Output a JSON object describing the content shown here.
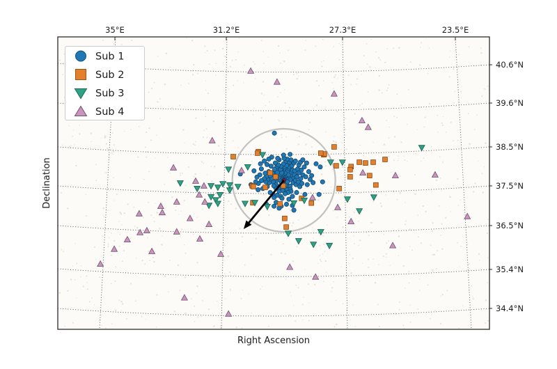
{
  "axes": {
    "x_label": "Right Ascension",
    "y_label": "Declination",
    "x_tick_labels": [
      "35°E",
      "31.2°E",
      "27.3°E",
      "23.5°E"
    ],
    "y_tick_labels": [
      "40.6°N",
      "39.6°N",
      "38.5°N",
      "37.5°N",
      "36.5°N",
      "35.4°N",
      "34.4°N"
    ]
  },
  "legend": {
    "position": "upper left",
    "items": [
      {
        "label": "Sub 1",
        "marker": "circle",
        "color": "#1f77b4",
        "edge": "#14527f"
      },
      {
        "label": "Sub 2",
        "marker": "square",
        "color": "#e2802e",
        "edge": "#9c5312"
      },
      {
        "label": "Sub 3",
        "marker": "triangle-down",
        "color": "#2fa184",
        "edge": "#1b6b57"
      },
      {
        "label": "Sub 4",
        "marker": "triangle-up",
        "color": "#cb93bf",
        "edge": "#6d5568"
      }
    ]
  },
  "chart_data": {
    "type": "scatter",
    "title": "",
    "xlabel": "Right Ascension",
    "ylabel": "Declination",
    "grid": "dotted",
    "legend_position": "upper left",
    "x_axis": {
      "unit": "deg E",
      "ticks": [
        35,
        31.2,
        27.3,
        23.5
      ],
      "direction": "reversed (RA decreases to the right)"
    },
    "y_axis": {
      "unit": "deg N",
      "ticks": [
        40.6,
        39.6,
        38.5,
        37.5,
        36.5,
        35.4,
        34.4
      ]
    },
    "series": [
      {
        "name": "Sub 1",
        "marker": "circle",
        "color": "#1f77b4",
        "edge": "#14456b",
        "points": [
          [
            29.28,
            37.71
          ],
          [
            29.31,
            37.74
          ],
          [
            29.25,
            37.68
          ],
          [
            29.33,
            37.69
          ],
          [
            29.22,
            37.73
          ],
          [
            29.29,
            37.77
          ],
          [
            29.35,
            37.73
          ],
          [
            29.24,
            37.64
          ],
          [
            29.3,
            37.66
          ],
          [
            29.19,
            37.69
          ],
          [
            29.37,
            37.76
          ],
          [
            29.26,
            37.78
          ],
          [
            29.32,
            37.62
          ],
          [
            29.21,
            37.76
          ],
          [
            29.38,
            37.67
          ],
          [
            29.16,
            37.73
          ],
          [
            29.27,
            37.58
          ],
          [
            29.34,
            37.8
          ],
          [
            29.23,
            37.61
          ],
          [
            29.4,
            37.72
          ],
          [
            29.14,
            37.66
          ],
          [
            29.31,
            37.56
          ],
          [
            29.18,
            37.79
          ],
          [
            29.36,
            37.59
          ],
          [
            29.28,
            37.83
          ],
          [
            29.12,
            37.71
          ],
          [
            29.42,
            37.77
          ],
          [
            29.25,
            37.85
          ],
          [
            29.2,
            37.57
          ],
          [
            29.39,
            37.63
          ],
          [
            29.1,
            37.76
          ],
          [
            29.33,
            37.87
          ],
          [
            29.44,
            37.68
          ],
          [
            29.17,
            37.62
          ],
          [
            29.28,
            37.54
          ],
          [
            29.41,
            37.81
          ],
          [
            29.13,
            37.8
          ],
          [
            29.36,
            37.85
          ],
          [
            29.22,
            37.52
          ],
          [
            29.46,
            37.73
          ],
          [
            29.05,
            37.68
          ],
          [
            29.52,
            37.75
          ],
          [
            29.27,
            37.95
          ],
          [
            29.3,
            37.47
          ],
          [
            29.0,
            37.78
          ],
          [
            29.56,
            37.64
          ],
          [
            29.15,
            37.92
          ],
          [
            29.43,
            37.5
          ],
          [
            28.98,
            37.6
          ],
          [
            29.58,
            37.82
          ],
          [
            29.08,
            37.51
          ],
          [
            29.5,
            37.92
          ],
          [
            29.35,
            37.97
          ],
          [
            29.24,
            37.44
          ],
          [
            28.95,
            37.72
          ],
          [
            29.6,
            37.7
          ],
          [
            29.12,
            37.96
          ],
          [
            29.47,
            37.45
          ],
          [
            29.03,
            37.87
          ],
          [
            29.55,
            37.55
          ],
          [
            29.18,
            37.42
          ],
          [
            29.4,
            37.94
          ],
          [
            28.93,
            37.8
          ],
          [
            29.62,
            37.76
          ],
          [
            29.07,
            37.43
          ],
          [
            29.51,
            37.86
          ],
          [
            29.25,
            38.0
          ],
          [
            29.33,
            37.4
          ],
          [
            28.9,
            37.66
          ],
          [
            29.65,
            37.62
          ],
          [
            29.1,
            38.0
          ],
          [
            29.45,
            37.38
          ],
          [
            29.0,
            37.92
          ],
          [
            29.57,
            37.47
          ],
          [
            29.2,
            38.04
          ],
          [
            29.38,
            38.02
          ],
          [
            28.88,
            37.55
          ],
          [
            29.67,
            37.84
          ],
          [
            29.05,
            37.38
          ],
          [
            29.53,
            38.0
          ],
          [
            29.15,
            37.35
          ],
          [
            29.48,
            38.05
          ],
          [
            28.92,
            37.9
          ],
          [
            29.63,
            37.52
          ],
          [
            29.3,
            38.08
          ],
          [
            29.25,
            37.32
          ],
          [
            28.85,
            37.75
          ],
          [
            29.7,
            37.71
          ],
          [
            29.02,
            38.03
          ],
          [
            29.6,
            37.94
          ],
          [
            28.8,
            37.62
          ],
          [
            29.75,
            37.78
          ],
          [
            29.1,
            38.12
          ],
          [
            29.4,
            37.25
          ],
          [
            28.78,
            37.85
          ],
          [
            29.78,
            37.6
          ],
          [
            29.22,
            38.15
          ],
          [
            29.52,
            37.28
          ],
          [
            28.75,
            37.5
          ],
          [
            29.8,
            37.88
          ],
          [
            28.95,
            38.1
          ],
          [
            29.66,
            37.3
          ],
          [
            28.82,
            37.95
          ],
          [
            29.83,
            37.68
          ],
          [
            29.05,
            38.18
          ],
          [
            29.35,
            37.2
          ],
          [
            28.72,
            37.7
          ],
          [
            29.85,
            37.5
          ],
          [
            29.18,
            38.2
          ],
          [
            29.58,
            38.1
          ],
          [
            28.86,
            37.35
          ],
          [
            29.72,
            38.02
          ],
          [
            28.7,
            37.92
          ],
          [
            29.88,
            37.76
          ],
          [
            29.0,
            37.25
          ],
          [
            29.45,
            38.18
          ],
          [
            28.78,
            38.05
          ],
          [
            29.9,
            37.62
          ],
          [
            29.28,
            38.22
          ],
          [
            29.62,
            37.22
          ],
          [
            28.68,
            37.58
          ],
          [
            29.92,
            37.84
          ],
          [
            28.9,
            38.15
          ],
          [
            29.75,
            37.35
          ],
          [
            28.65,
            37.8
          ],
          [
            29.95,
            37.7
          ],
          [
            29.12,
            37.18
          ],
          [
            29.5,
            38.22
          ],
          [
            28.73,
            38.12
          ],
          [
            29.86,
            38.06
          ],
          [
            28.55,
            37.75
          ],
          [
            30.05,
            37.65
          ],
          [
            29.3,
            38.3
          ],
          [
            29.55,
            37.1
          ],
          [
            28.5,
            37.55
          ],
          [
            30.1,
            37.8
          ],
          [
            28.6,
            38.0
          ],
          [
            30.0,
            37.45
          ],
          [
            29.08,
            38.32
          ],
          [
            29.7,
            38.25
          ],
          [
            28.45,
            37.88
          ],
          [
            30.15,
            37.58
          ],
          [
            28.58,
            37.3
          ],
          [
            30.05,
            37.95
          ],
          [
            29.2,
            37.05
          ],
          [
            29.8,
            38.2
          ],
          [
            28.4,
            37.68
          ],
          [
            30.2,
            37.74
          ],
          [
            28.65,
            38.18
          ],
          [
            29.95,
            38.15
          ],
          [
            29.0,
            37.02
          ],
          [
            29.62,
            37.0
          ],
          [
            28.35,
            37.78
          ],
          [
            30.24,
            37.62
          ],
          [
            28.52,
            38.1
          ],
          [
            30.08,
            38.08
          ],
          [
            29.38,
            37.0
          ],
          [
            29.88,
            37.05
          ],
          [
            28.3,
            37.6
          ],
          [
            30.16,
            37.42
          ],
          [
            29.61,
            38.86
          ],
          [
            28.06,
            38.0
          ],
          [
            27.98,
            37.62
          ],
          [
            28.1,
            37.3
          ],
          [
            28.2,
            38.08
          ],
          [
            30.4,
            37.55
          ],
          [
            30.76,
            37.82
          ],
          [
            29.45,
            36.95
          ],
          [
            28.95,
            36.9
          ],
          [
            30.3,
            37.9
          ]
        ]
      },
      {
        "name": "Sub 2",
        "marker": "square",
        "color": "#e2802e",
        "edge": "#8a4a15",
        "points": [
          [
            31.0,
            38.26
          ],
          [
            30.15,
            38.39
          ],
          [
            27.94,
            38.31
          ],
          [
            27.59,
            38.51
          ],
          [
            27.92,
            38.33
          ],
          [
            27.52,
            38.03
          ],
          [
            27.02,
            38.01
          ],
          [
            26.74,
            38.12
          ],
          [
            26.53,
            38.1
          ],
          [
            26.27,
            38.12
          ],
          [
            25.87,
            38.19
          ],
          [
            27.05,
            37.93
          ],
          [
            26.39,
            37.78
          ],
          [
            27.05,
            37.75
          ],
          [
            26.18,
            37.54
          ],
          [
            27.42,
            37.45
          ],
          [
            30.36,
            37.52
          ],
          [
            29.92,
            37.48
          ],
          [
            30.34,
            37.09
          ],
          [
            29.26,
            36.69
          ],
          [
            29.21,
            36.47
          ],
          [
            28.36,
            37.08
          ],
          [
            28.69,
            37.2
          ],
          [
            29.57,
            37.75
          ],
          [
            29.31,
            37.52
          ],
          [
            30.18,
            38.35
          ],
          [
            29.75,
            37.85
          ],
          [
            30.32,
            37.5
          ],
          [
            29.42,
            37.06
          ],
          [
            28.04,
            38.35
          ]
        ]
      },
      {
        "name": "Sub 3",
        "marker": "triangle-down",
        "color": "#2fa184",
        "edge": "#17614f",
        "points": [
          [
            32.79,
            37.59
          ],
          [
            32.22,
            37.45
          ],
          [
            31.75,
            37.52
          ],
          [
            31.52,
            37.48
          ],
          [
            31.35,
            37.57
          ],
          [
            31.16,
            37.94
          ],
          [
            31.12,
            37.41
          ],
          [
            31.45,
            37.29
          ],
          [
            31.75,
            37.24
          ],
          [
            31.59,
            37.16
          ],
          [
            31.52,
            37.07
          ],
          [
            31.82,
            37.02
          ],
          [
            31.12,
            37.54
          ],
          [
            30.84,
            37.5
          ],
          [
            30.27,
            37.09
          ],
          [
            30.6,
            37.07
          ],
          [
            29.85,
            36.99
          ],
          [
            30.01,
            38.31
          ],
          [
            30.51,
            38.0
          ],
          [
            28.95,
            37.08
          ],
          [
            28.6,
            37.15
          ],
          [
            27.71,
            38.12
          ],
          [
            27.31,
            38.12
          ],
          [
            27.14,
            37.18
          ],
          [
            26.25,
            37.23
          ],
          [
            26.74,
            36.88
          ],
          [
            24.63,
            38.49
          ],
          [
            27.75,
            36.0
          ],
          [
            29.14,
            36.31
          ],
          [
            28.04,
            36.35
          ],
          [
            28.79,
            36.12
          ],
          [
            28.29,
            36.03
          ]
        ]
      },
      {
        "name": "Sub 4",
        "marker": "triangle-up",
        "color": "#cb93bf",
        "edge": "#6d5568",
        "points": [
          [
            30.41,
            40.44
          ],
          [
            29.52,
            40.16
          ],
          [
            27.59,
            39.86
          ],
          [
            26.65,
            39.18
          ],
          [
            26.44,
            39.01
          ],
          [
            31.71,
            38.67
          ],
          [
            30.72,
            37.91
          ],
          [
            33.02,
            37.98
          ],
          [
            32.27,
            37.64
          ],
          [
            31.99,
            37.52
          ],
          [
            32.15,
            37.29
          ],
          [
            31.96,
            37.11
          ],
          [
            32.91,
            37.11
          ],
          [
            33.45,
            37.0
          ],
          [
            33.4,
            36.84
          ],
          [
            34.18,
            36.81
          ],
          [
            32.46,
            36.69
          ],
          [
            31.82,
            36.54
          ],
          [
            34.15,
            36.33
          ],
          [
            33.92,
            36.38
          ],
          [
            32.91,
            36.35
          ],
          [
            32.13,
            36.17
          ],
          [
            34.58,
            36.15
          ],
          [
            35.02,
            35.91
          ],
          [
            35.49,
            35.53
          ],
          [
            33.75,
            35.85
          ],
          [
            31.16,
            34.26
          ],
          [
            32.65,
            34.67
          ],
          [
            26.62,
            37.85
          ],
          [
            25.52,
            37.78
          ],
          [
            24.18,
            37.8
          ],
          [
            27.47,
            36.97
          ],
          [
            27.02,
            36.61
          ],
          [
            23.09,
            36.74
          ],
          [
            25.61,
            36.0
          ],
          [
            31.42,
            35.78
          ],
          [
            29.09,
            35.45
          ],
          [
            28.22,
            35.2
          ],
          [
            28.32,
            37.22
          ]
        ]
      }
    ],
    "annotations": {
      "circle": {
        "ra": 29.29,
        "dec": 37.66,
        "radius_px": 74,
        "color": "#c2c2c2"
      },
      "arrow": {
        "from": [
          29.29,
          37.66
        ],
        "to": [
          30.65,
          36.42
        ],
        "color": "#000000"
      },
      "center_marker": {
        "ra": 29.29,
        "dec": 37.66,
        "color": "#7a2048"
      }
    }
  }
}
